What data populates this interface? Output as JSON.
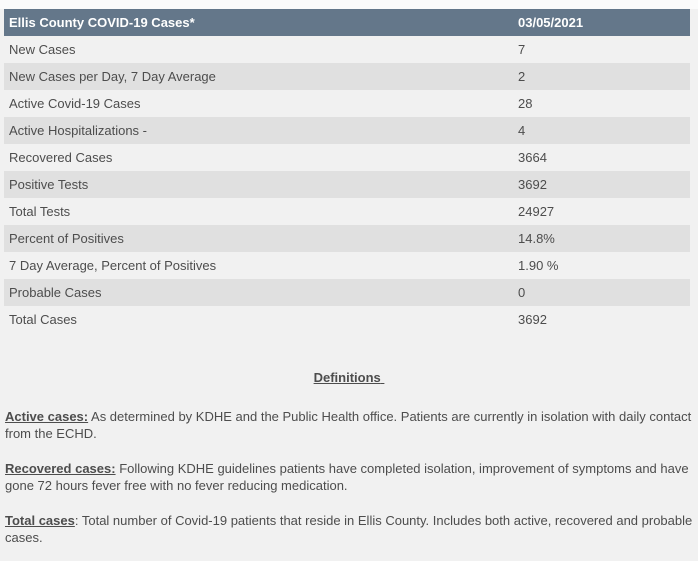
{
  "colors": {
    "page_background": "#f1f1f1",
    "table_header_background": "#64778a",
    "table_header_text": "#ffffff",
    "row_light": "#f1f1f1",
    "row_dark": "#e0e0e0",
    "body_text": "#4d4d4d"
  },
  "table": {
    "title": "Ellis County COVID-19 Cases*",
    "date": "03/05/2021",
    "rows": [
      {
        "label": "New Cases",
        "value": "7"
      },
      {
        "label": "New Cases per Day, 7 Day Average",
        "value": "2"
      },
      {
        "label": "Active Covid-19 Cases",
        "value": "28"
      },
      {
        "label": "Active Hospitalizations -",
        "value": "4"
      },
      {
        "label": "Recovered Cases",
        "value": "3664"
      },
      {
        "label": "Positive Tests",
        "value": "3692"
      },
      {
        "label": "Total Tests",
        "value": "24927"
      },
      {
        "label": "Percent of Positives",
        "value": "14.8%"
      },
      {
        "label": "7 Day Average, Percent of Positives",
        "value": "1.90 %"
      },
      {
        "label": "Probable Cases",
        "value": "0"
      },
      {
        "label": "Total Cases",
        "value": "3692"
      }
    ]
  },
  "definitions": {
    "heading": "Definitions",
    "items": [
      {
        "term": "Active cases:",
        "text": " As determined by KDHE and the Public Health office. Patients are currently in isolation with daily contact from the ECHD."
      },
      {
        "term": "Recovered cases:",
        "text": " Following KDHE guidelines patients have completed isolation, improvement of symptoms and have gone 72 hours fever free with no fever reducing medication."
      },
      {
        "term": "Total cases",
        "text": ": Total number of Covid-19 patients that reside in Ellis County. Includes both active, recovered and probable cases."
      }
    ]
  }
}
